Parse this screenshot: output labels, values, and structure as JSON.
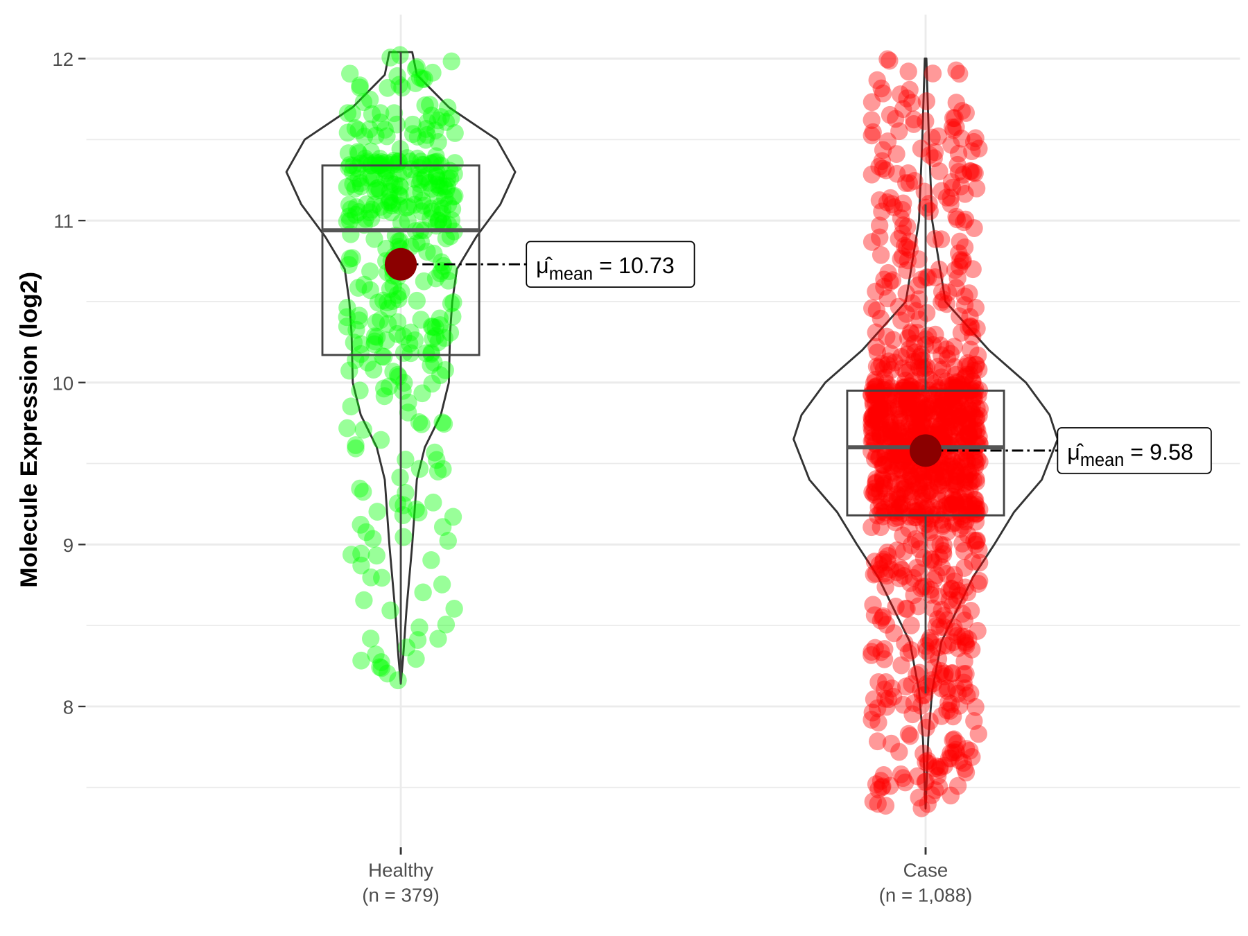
{
  "chart_data": {
    "type": "violin",
    "title": "",
    "xlabel": "",
    "ylabel": "Molecule Expression (log2)",
    "ylim": [
      7.25,
      12.27
    ],
    "yticks": [
      8,
      9,
      10,
      11,
      12
    ],
    "grid": true,
    "groups": [
      {
        "name": "Healthy",
        "n_label": "(n = 379)",
        "n": 379,
        "color": "#00ff00",
        "box": {
          "q1": 10.17,
          "median": 10.94,
          "q3": 11.34,
          "whisker_low": 8.14,
          "whisker_high": 12.04
        },
        "mean": 10.73,
        "mean_label": "10.73",
        "violin": [
          [
            8.14,
            0
          ],
          [
            8.3,
            0.02
          ],
          [
            8.6,
            0.05
          ],
          [
            9.0,
            0.1
          ],
          [
            9.4,
            0.14
          ],
          [
            9.6,
            0.21
          ],
          [
            9.8,
            0.35
          ],
          [
            10.0,
            0.42
          ],
          [
            10.3,
            0.43
          ],
          [
            10.5,
            0.45
          ],
          [
            10.7,
            0.49
          ],
          [
            10.9,
            0.66
          ],
          [
            11.1,
            0.87
          ],
          [
            11.3,
            1.0
          ],
          [
            11.5,
            0.84
          ],
          [
            11.7,
            0.42
          ],
          [
            11.9,
            0.14
          ],
          [
            12.04,
            0.1
          ]
        ],
        "points_range": [
          8.14,
          12.05
        ]
      },
      {
        "name": "Case",
        "n_label": "(n = 1,088)",
        "n": 1088,
        "color": "#ff0000",
        "box": {
          "q1": 9.18,
          "median": 9.6,
          "q3": 9.95,
          "whisker_low": 8.08,
          "whisker_high": 11.1
        },
        "mean": 9.58,
        "mean_label": "9.58",
        "violin": [
          [
            7.37,
            0
          ],
          [
            7.8,
            0.02
          ],
          [
            8.1,
            0.05
          ],
          [
            8.4,
            0.12
          ],
          [
            8.6,
            0.24
          ],
          [
            8.8,
            0.36
          ],
          [
            9.0,
            0.52
          ],
          [
            9.2,
            0.67
          ],
          [
            9.4,
            0.88
          ],
          [
            9.65,
            1.0
          ],
          [
            9.8,
            0.94
          ],
          [
            10.0,
            0.76
          ],
          [
            10.2,
            0.48
          ],
          [
            10.5,
            0.15
          ],
          [
            11.0,
            0.05
          ],
          [
            11.5,
            0.025
          ],
          [
            12.0,
            0.006
          ]
        ],
        "points_range": [
          7.37,
          12.0
        ]
      }
    ],
    "mean_symbol": "μ̂",
    "mean_subscript": "mean",
    "mean_equals": "="
  }
}
